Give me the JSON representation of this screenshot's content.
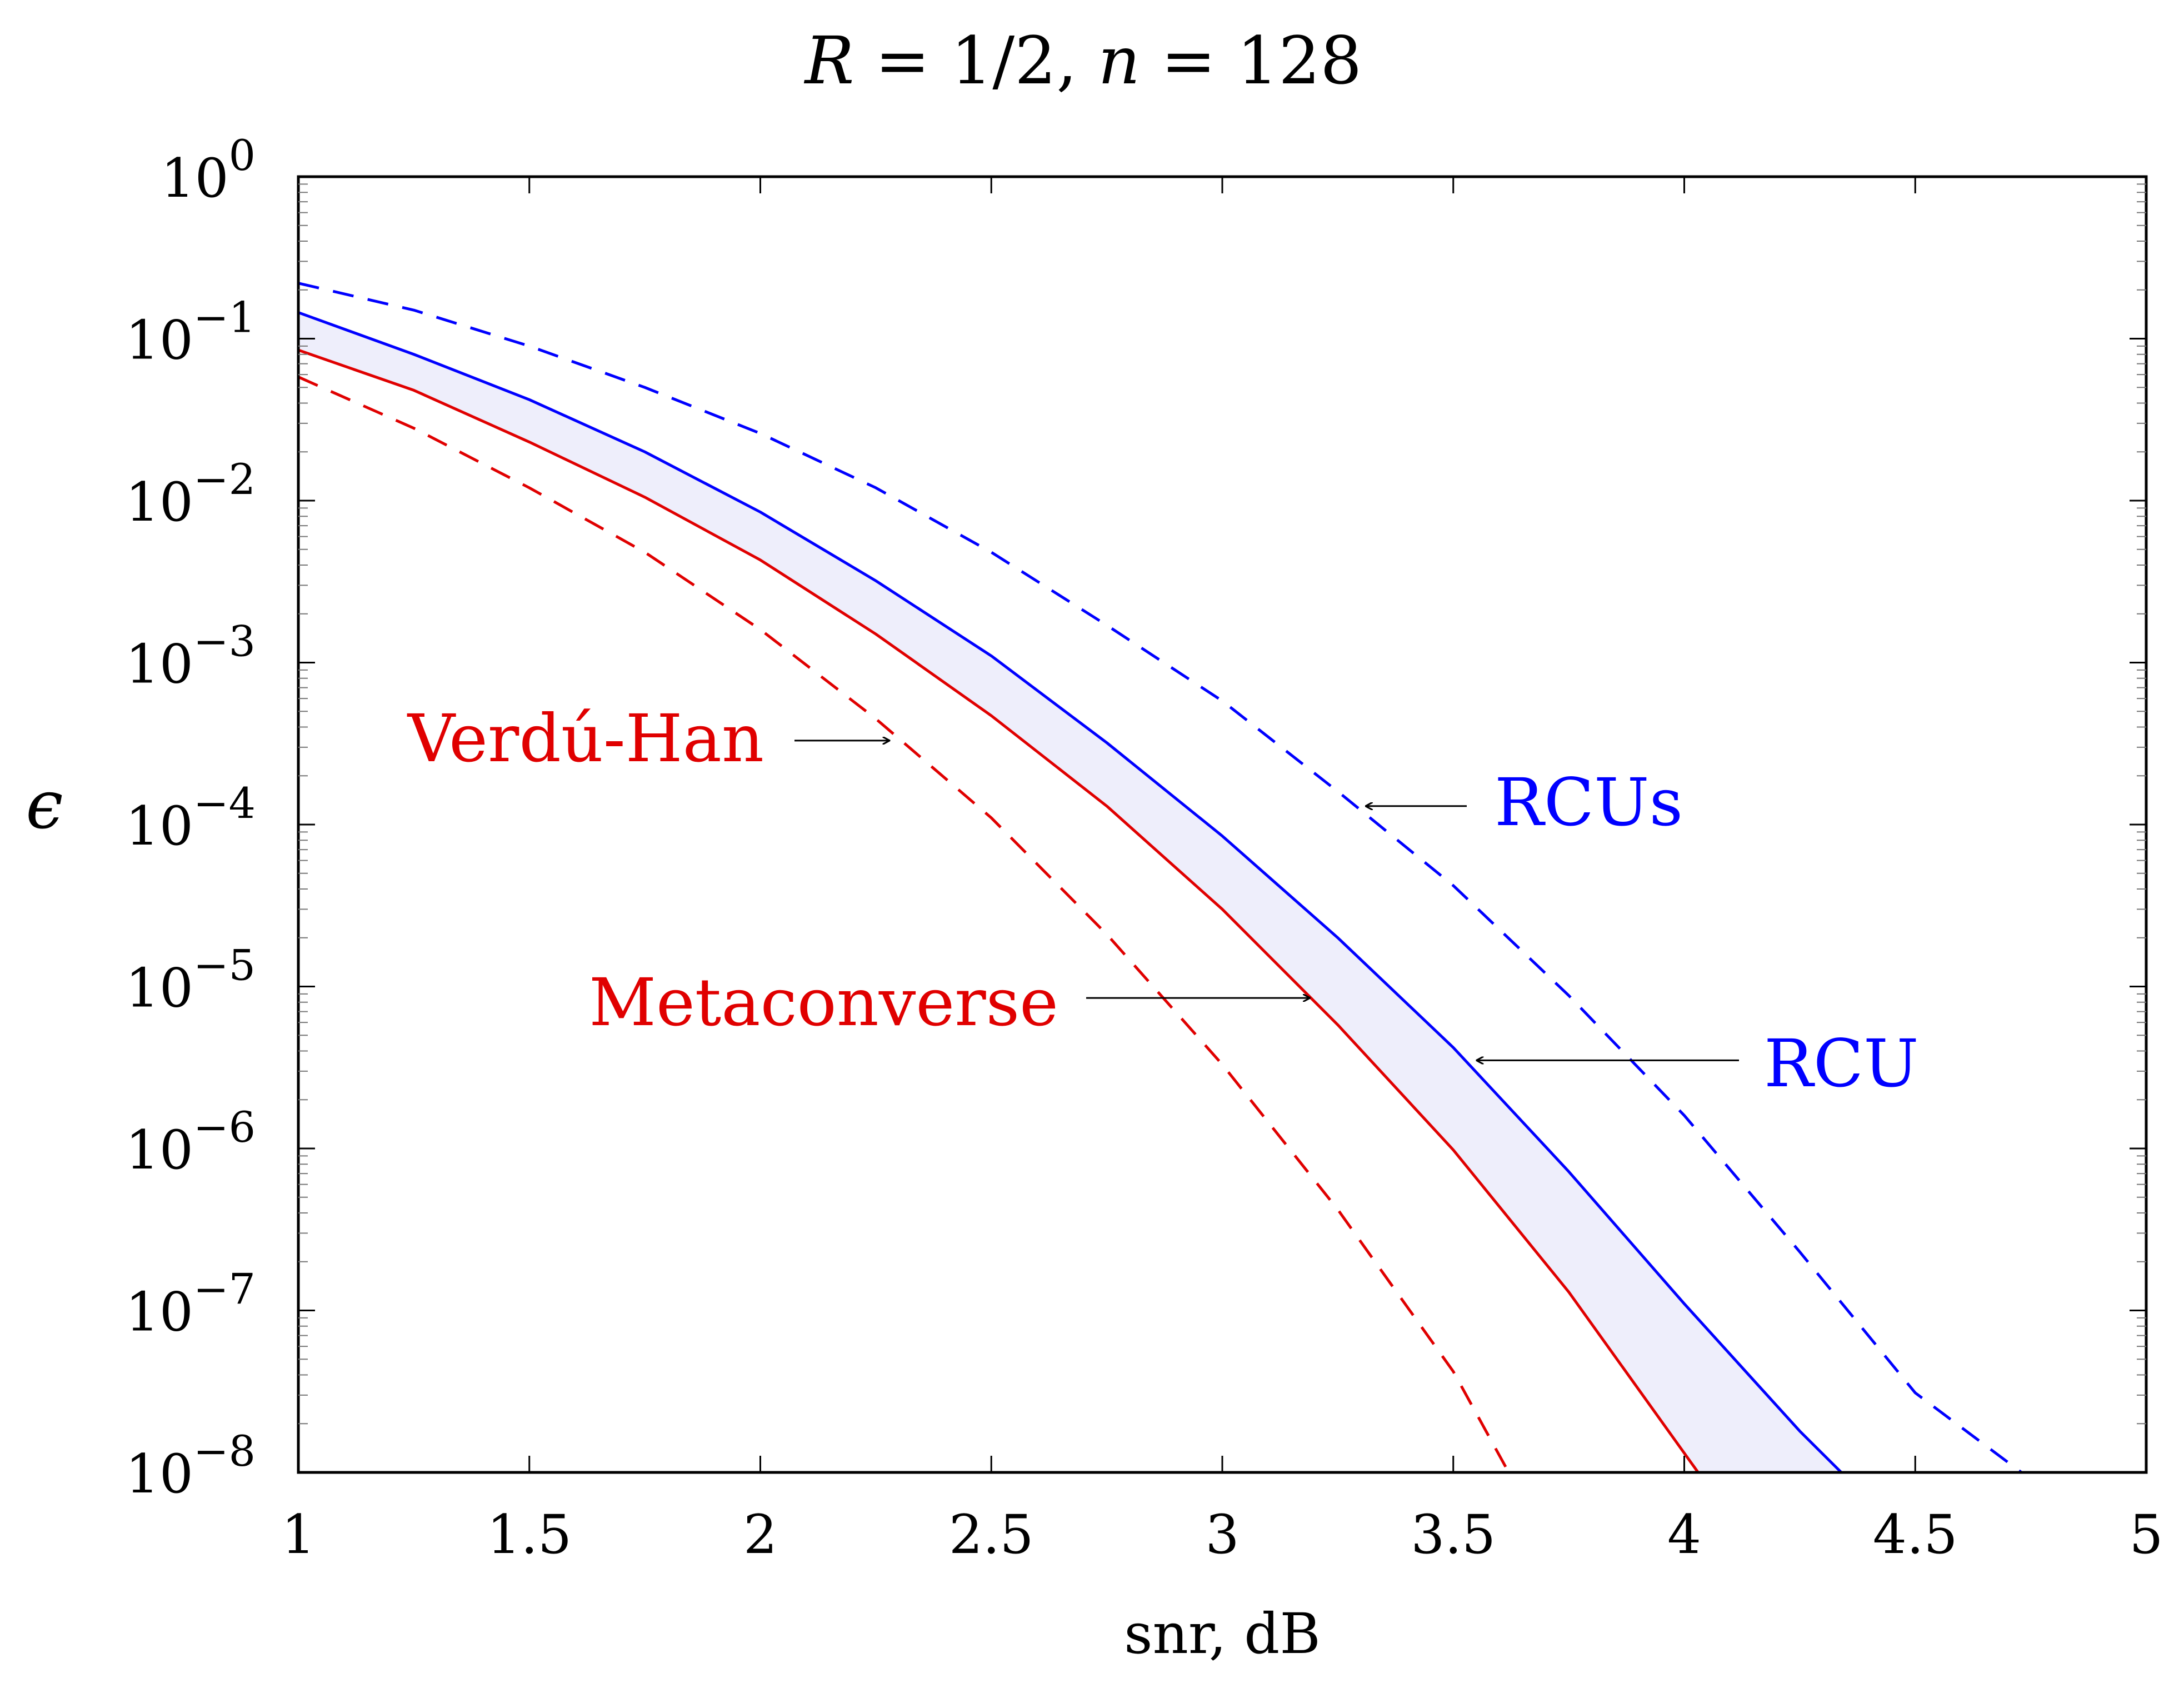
{
  "chart_data": {
    "type": "line",
    "title_parts": [
      "R",
      " = 1/2, ",
      "n",
      " = 128"
    ],
    "xlabel": "snr, dB",
    "ylabel": "ϵ",
    "xlim": [
      1,
      5
    ],
    "ylim": [
      1e-08,
      1
    ],
    "yscale": "log",
    "grid": false,
    "x_ticks": [
      1,
      1.5,
      2,
      2.5,
      3,
      3.5,
      4,
      4.5,
      5
    ],
    "x_tick_labels": [
      "1",
      "1.5",
      "2",
      "2.5",
      "3",
      "3.5",
      "4",
      "4.5",
      "5"
    ],
    "y_tick_exponents": [
      0,
      -1,
      -2,
      -3,
      -4,
      -5,
      -6,
      -7,
      -8
    ],
    "y_tick_base": "10",
    "colors": {
      "blue": "#0000ff",
      "red": "#e00000",
      "band": "#eeeefb"
    },
    "shaded_band": {
      "between": [
        "RCU",
        "Metaconverse"
      ]
    },
    "series": [
      {
        "name": "RCUs",
        "color": "#0000ff",
        "style": "dashed",
        "x": [
          1.0,
          1.25,
          1.5,
          1.75,
          2.0,
          2.25,
          2.5,
          2.75,
          3.0,
          3.25,
          3.5,
          3.75,
          4.0,
          4.25,
          4.5,
          4.73
        ],
        "y": [
          0.22,
          0.15,
          0.09,
          0.05,
          0.026,
          0.012,
          0.0048,
          0.0017,
          0.00058,
          0.00016,
          4.2e-05,
          8.8e-06,
          1.6e-06,
          2.3e-07,
          3.1e-08,
          1e-08
        ]
      },
      {
        "name": "RCU",
        "color": "#0000ff",
        "style": "solid",
        "x": [
          1.0,
          1.25,
          1.5,
          1.75,
          2.0,
          2.25,
          2.5,
          2.75,
          3.0,
          3.25,
          3.5,
          3.75,
          4.0,
          4.25,
          4.34
        ],
        "y": [
          0.145,
          0.08,
          0.042,
          0.02,
          0.0085,
          0.0032,
          0.0011,
          0.00032,
          8.5e-05,
          2e-05,
          4.2e-06,
          7.2e-07,
          1.1e-07,
          1.8e-08,
          1e-08
        ]
      },
      {
        "name": "Metaconverse",
        "color": "#e00000",
        "style": "solid",
        "x": [
          1.0,
          1.25,
          1.5,
          1.75,
          2.0,
          2.25,
          2.5,
          2.75,
          3.0,
          3.25,
          3.5,
          3.75,
          4.03
        ],
        "y": [
          0.085,
          0.048,
          0.023,
          0.0105,
          0.0043,
          0.0015,
          0.00047,
          0.00013,
          3e-05,
          5.8e-06,
          9.8e-07,
          1.3e-07,
          1e-08
        ]
      },
      {
        "name": "Verdú-Han",
        "color": "#e00000",
        "style": "dashed",
        "x": [
          1.0,
          1.25,
          1.5,
          1.75,
          2.0,
          2.25,
          2.5,
          2.75,
          3.0,
          3.25,
          3.5,
          3.62
        ],
        "y": [
          0.058,
          0.028,
          0.012,
          0.0048,
          0.0016,
          0.00045,
          0.00011,
          2.1e-05,
          3.3e-06,
          4.2e-07,
          4.2e-08,
          1e-08
        ]
      }
    ],
    "annotations": [
      {
        "text": "Verdú-Han",
        "color": "#e00000",
        "arrow_to": [
          2.28,
          0.00033
        ]
      },
      {
        "text": "RCUs",
        "color": "#0000ff",
        "arrow_to": [
          3.31,
          0.00013
        ]
      },
      {
        "text": "Metaconverse",
        "color": "#e00000",
        "arrow_to": [
          3.19,
          8.5e-06
        ]
      },
      {
        "text": "RCU",
        "color": "#0000ff",
        "arrow_to": [
          3.55,
          3.5e-06
        ]
      }
    ]
  }
}
